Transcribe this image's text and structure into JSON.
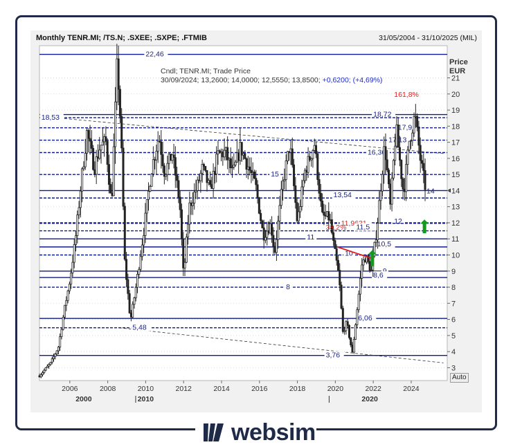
{
  "header": {
    "title": "Monthly TENR.MI; /TS.N; .SXEE; .SXPE; .FTMIB",
    "range": "31/05/2004 - 31/10/2025 (MIL)"
  },
  "legend": {
    "line1": "Cndl; TENR.MI; Trade Price",
    "line2_main": "30/09/2024; 13,2600; 14,0000; 12,5550; 13,8500;",
    "line2_change": "+0,6200; (+4,69%)"
  },
  "auto_label": "Auto",
  "logo": {
    "text": "websim"
  },
  "colors": {
    "level": "#0d1a8c",
    "candle": "#222222",
    "fib": "#e01e1e",
    "arrow": "#119a1d",
    "text": "#1a237e"
  },
  "chart_data": {
    "type": "candlestick",
    "instrument": "TENR.MI",
    "frequency": "monthly",
    "ylabel": "Price",
    "yunit": "EUR",
    "ylim": [
      2.2,
      23.0
    ],
    "xlim": [
      2004.4,
      2025.9
    ],
    "y_ticks": [
      3,
      4,
      5,
      6,
      7,
      8,
      9,
      10,
      11,
      12,
      13,
      14,
      15,
      16,
      17,
      18,
      19,
      20,
      21
    ],
    "x_ticks_minor": [
      "2006",
      "2008",
      "2010",
      "2012",
      "2014",
      "2016",
      "2018",
      "2020",
      "2022",
      "2024"
    ],
    "x_ticks_major": [
      "2000",
      "2010",
      "2020"
    ],
    "last_price_label": "14",
    "price_path": [
      [
        2004.4,
        2.5
      ],
      [
        2005.0,
        3.3
      ],
      [
        2005.4,
        4.3
      ],
      [
        2005.7,
        6.5
      ],
      [
        2006.0,
        8.4
      ],
      [
        2006.3,
        11.0
      ],
      [
        2006.6,
        14.5
      ],
      [
        2006.9,
        17.6
      ],
      [
        2007.3,
        15.4
      ],
      [
        2007.6,
        16.8
      ],
      [
        2007.9,
        17.0
      ],
      [
        2008.2,
        13.0
      ],
      [
        2008.5,
        22.1
      ],
      [
        2008.7,
        17.6
      ],
      [
        2008.9,
        9.6
      ],
      [
        2009.2,
        5.9
      ],
      [
        2009.5,
        8.1
      ],
      [
        2009.9,
        11.5
      ],
      [
        2010.3,
        15.3
      ],
      [
        2010.7,
        17.4
      ],
      [
        2011.0,
        15.1
      ],
      [
        2011.4,
        16.3
      ],
      [
        2011.8,
        13.2
      ],
      [
        2012.0,
        8.6
      ],
      [
        2012.3,
        13.0
      ],
      [
        2012.7,
        14.2
      ],
      [
        2013.0,
        15.4
      ],
      [
        2013.4,
        14.0
      ],
      [
        2013.8,
        16.2
      ],
      [
        2014.2,
        16.4
      ],
      [
        2014.6,
        15.0
      ],
      [
        2015.0,
        16.7
      ],
      [
        2015.4,
        15.5
      ],
      [
        2015.8,
        14.3
      ],
      [
        2016.2,
        11.2
      ],
      [
        2016.6,
        11.9
      ],
      [
        2016.8,
        10.1
      ],
      [
        2017.2,
        14.2
      ],
      [
        2017.6,
        16.9
      ],
      [
        2018.0,
        12.0
      ],
      [
        2018.4,
        15.2
      ],
      [
        2018.9,
        16.9
      ],
      [
        2019.3,
        12.4
      ],
      [
        2019.7,
        12.3
      ],
      [
        2019.9,
        10.7
      ],
      [
        2020.2,
        8.6
      ],
      [
        2020.4,
        5.2
      ],
      [
        2020.6,
        5.8
      ],
      [
        2020.9,
        3.9
      ],
      [
        2021.1,
        6.1
      ],
      [
        2021.4,
        9.4
      ],
      [
        2021.6,
        9.9
      ],
      [
        2021.9,
        9.0
      ],
      [
        2022.2,
        11.7
      ],
      [
        2022.6,
        16.9
      ],
      [
        2022.9,
        13.0
      ],
      [
        2023.2,
        17.9
      ],
      [
        2023.6,
        13.8
      ],
      [
        2023.9,
        17.1
      ],
      [
        2024.2,
        18.7
      ],
      [
        2024.5,
        15.8
      ],
      [
        2024.8,
        13.85
      ]
    ],
    "horizontal_levels": [
      {
        "value": 22.46,
        "label": "22,46",
        "style": "solid"
      },
      {
        "value": 18.72,
        "label": "18,72",
        "style": "solid"
      },
      {
        "value": 18.53,
        "label": "18,53",
        "style": "dashed"
      },
      {
        "value": 17.9,
        "label": "17,9",
        "style": "dashed"
      },
      {
        "value": 17.13,
        "label": "17,13",
        "style": "dashed"
      },
      {
        "value": 16.36,
        "label": "16,36",
        "style": "dashed"
      },
      {
        "value": 15.0,
        "label": "15",
        "style": "dashed"
      },
      {
        "value": 14.0,
        "label": "",
        "style": "solid"
      },
      {
        "value": 13.54,
        "label": "13,54",
        "style": "dashed"
      },
      {
        "value": 12.0,
        "label": "12",
        "style": "dashed"
      },
      {
        "value": 11.9631,
        "label": "11,9631",
        "style": "dashed"
      },
      {
        "value": 11.5,
        "label": "11,5",
        "style": "dashed"
      },
      {
        "value": 11.0,
        "label": "11",
        "style": "solid"
      },
      {
        "value": 10.5,
        "label": "10,5",
        "style": "solid"
      },
      {
        "value": 10.0,
        "label": "10",
        "style": "dashed"
      },
      {
        "value": 9.0,
        "label": "9",
        "style": "solid"
      },
      {
        "value": 8.6,
        "label": "8,6",
        "style": "solid"
      },
      {
        "value": 8.0,
        "label": "8",
        "style": "dashed"
      },
      {
        "value": 6.06,
        "label": "6,06",
        "style": "solid"
      },
      {
        "value": 5.48,
        "label": "5,48",
        "style": "dashed"
      },
      {
        "value": 3.76,
        "label": "3,76",
        "style": "solid"
      }
    ],
    "fib_labels": [
      {
        "text": "161,8%",
        "x": 2023.1,
        "y": 20.0
      },
      {
        "text": "38,2%",
        "x": 2019.5,
        "y": 11.75
      }
    ],
    "trendlines": [
      {
        "from": [
          2005.2,
          18.53
        ],
        "to": [
          2025.7,
          16.3
        ],
        "style": "dashed"
      },
      {
        "from": [
          2008.6,
          5.48
        ],
        "to": [
          2025.7,
          3.3
        ],
        "style": "dashed"
      }
    ],
    "red_line": {
      "from": [
        2020.1,
        10.5
      ],
      "to": [
        2021.9,
        9.8
      ]
    },
    "arrows": [
      {
        "x": 2021.95,
        "y_from": 9.3,
        "y_to": 10.3,
        "direction": "up"
      },
      {
        "x": 2024.7,
        "y_from": 11.35,
        "y_to": 12.2,
        "direction": "up"
      }
    ]
  }
}
